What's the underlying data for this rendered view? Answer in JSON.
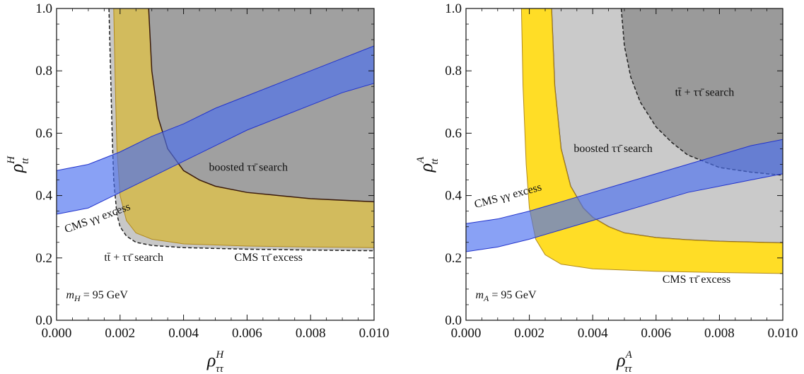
{
  "chart_data": [
    {
      "type": "area",
      "xlabel": "ρ",
      "xlabel_sup": "H",
      "xlabel_sub": "ττ",
      "ylabel": "ρ",
      "ylabel_sup": "H",
      "ylabel_sub": "tt",
      "xlim": [
        0,
        0.01
      ],
      "ylim": [
        0,
        1.0
      ],
      "xticks": [
        "0.000",
        "0.002",
        "0.004",
        "0.006",
        "0.008",
        "0.010"
      ],
      "yticks": [
        "0.0",
        "0.2",
        "0.4",
        "0.6",
        "0.8",
        "1.0"
      ],
      "grid": false,
      "regions": [
        {
          "name": "tt̄ + ττ̄ search",
          "kind": "excluded",
          "color": "#c8c8c8",
          "boundary": {
            "x": [
              0.00165,
              0.0017,
              0.00175,
              0.0018,
              0.0019,
              0.002,
              0.0022,
              0.0025,
              0.003,
              0.004,
              0.006,
              0.008,
              0.01
            ],
            "y": [
              1.0,
              0.8,
              0.6,
              0.45,
              0.34,
              0.3,
              0.27,
              0.25,
              0.24,
              0.233,
              0.228,
              0.225,
              0.223
            ]
          }
        },
        {
          "name": "CMS ττ̄ excess",
          "kind": "band",
          "color": "#d3b94a",
          "lower": {
            "x": [
              0.0018,
              0.00185,
              0.0019,
              0.002,
              0.0022,
              0.0025,
              0.003,
              0.004,
              0.006,
              0.008,
              0.01
            ],
            "y": [
              1.0,
              0.75,
              0.55,
              0.4,
              0.32,
              0.28,
              0.26,
              0.245,
              0.238,
              0.235,
              0.233
            ]
          },
          "upper": {
            "x": [
              0.0029,
              0.003,
              0.0032,
              0.0035,
              0.004,
              0.0045,
              0.005,
              0.006,
              0.007,
              0.008,
              0.01
            ],
            "y": [
              1.0,
              0.8,
              0.65,
              0.55,
              0.48,
              0.45,
              0.43,
              0.41,
              0.4,
              0.39,
              0.38
            ]
          }
        },
        {
          "name": "boosted ττ̄ search",
          "kind": "excluded",
          "color": "#a0a0a0",
          "boundary": {
            "x": [
              0.0029,
              0.003,
              0.0032,
              0.0035,
              0.004,
              0.0045,
              0.005,
              0.006,
              0.007,
              0.008,
              0.01
            ],
            "y": [
              1.0,
              0.8,
              0.65,
              0.55,
              0.48,
              0.45,
              0.43,
              0.41,
              0.4,
              0.39,
              0.38
            ]
          }
        },
        {
          "name": "CMS γγ excess",
          "kind": "band",
          "color": "#4a6ff0",
          "lower": {
            "x": [
              0,
              0.001,
              0.002,
              0.003,
              0.004,
              0.005,
              0.006,
              0.007,
              0.008,
              0.009,
              0.01
            ],
            "y": [
              0.34,
              0.36,
              0.41,
              0.46,
              0.51,
              0.56,
              0.61,
              0.65,
              0.69,
              0.73,
              0.76
            ]
          },
          "upper": {
            "x": [
              0,
              0.001,
              0.002,
              0.003,
              0.004,
              0.005,
              0.006,
              0.007,
              0.008,
              0.009,
              0.01
            ],
            "y": [
              0.48,
              0.5,
              0.54,
              0.59,
              0.63,
              0.68,
              0.72,
              0.76,
              0.8,
              0.84,
              0.88
            ]
          }
        }
      ],
      "annotations": [
        {
          "text": "boosted ττ̄ search",
          "x": 0.0048,
          "y": 0.48,
          "color": "#111111",
          "rotate": 0
        },
        {
          "text": "CMS γγ excess",
          "x": 0.0003,
          "y": 0.28,
          "color": "#1a1adb",
          "rotate": -20
        },
        {
          "text": "tt̄ + ττ̄ search",
          "x": 0.0015,
          "y": 0.19,
          "color": "#111111",
          "rotate": 0
        },
        {
          "text": "CMS ττ̄ excess",
          "x": 0.0056,
          "y": 0.19,
          "color": "#d42020",
          "rotate": 0
        },
        {
          "text": "m_H = 95 GeV",
          "x": 0.0003,
          "y": 0.07,
          "color": "#111111",
          "rotate": 0
        }
      ]
    },
    {
      "type": "area",
      "xlabel": "ρ",
      "xlabel_sup": "A",
      "xlabel_sub": "ττ",
      "ylabel": "ρ",
      "ylabel_sup": "A",
      "ylabel_sub": "tt",
      "xlim": [
        0,
        0.01
      ],
      "ylim": [
        0,
        1.0
      ],
      "xticks": [
        "0.000",
        "0.002",
        "0.004",
        "0.006",
        "0.008",
        "0.010"
      ],
      "yticks": [
        "0.0",
        "0.2",
        "0.4",
        "0.6",
        "0.8",
        "1.0"
      ],
      "grid": false,
      "regions": [
        {
          "name": "boosted ττ̄ search",
          "kind": "excluded",
          "color": "#cacaca",
          "boundary": {
            "x": [
              0.0027,
              0.0028,
              0.003,
              0.0033,
              0.0037,
              0.004,
              0.0045,
              0.005,
              0.006,
              0.007,
              0.008,
              0.01
            ],
            "y": [
              1.0,
              0.75,
              0.55,
              0.43,
              0.36,
              0.33,
              0.3,
              0.28,
              0.265,
              0.258,
              0.253,
              0.248
            ]
          }
        },
        {
          "name": "CMS ττ̄ excess",
          "kind": "band",
          "color": "#ffd700",
          "lower": {
            "x": [
              0.00175,
              0.0018,
              0.0019,
              0.002,
              0.0022,
              0.0025,
              0.003,
              0.004,
              0.006,
              0.008,
              0.01
            ],
            "y": [
              1.0,
              0.75,
              0.5,
              0.36,
              0.26,
              0.21,
              0.18,
              0.165,
              0.157,
              0.153,
              0.15
            ]
          },
          "upper": {
            "x": [
              0.0027,
              0.0028,
              0.003,
              0.0033,
              0.0037,
              0.004,
              0.0045,
              0.005,
              0.006,
              0.007,
              0.008,
              0.01
            ],
            "y": [
              1.0,
              0.75,
              0.55,
              0.43,
              0.36,
              0.33,
              0.3,
              0.28,
              0.265,
              0.258,
              0.253,
              0.248
            ]
          }
        },
        {
          "name": "tt̄ + ττ̄ search",
          "kind": "excluded",
          "color": "#9a9a9a",
          "boundary": {
            "x": [
              0.0049,
              0.005,
              0.0052,
              0.0055,
              0.006,
              0.0065,
              0.007,
              0.0075,
              0.008,
              0.009,
              0.01
            ],
            "y": [
              1.0,
              0.88,
              0.78,
              0.7,
              0.62,
              0.57,
              0.53,
              0.51,
              0.49,
              0.475,
              0.465
            ]
          }
        },
        {
          "name": "CMS γγ excess",
          "kind": "band",
          "color": "#4a6ff0",
          "lower": {
            "x": [
              0,
              0.001,
              0.002,
              0.003,
              0.004,
              0.005,
              0.006,
              0.007,
              0.008,
              0.009,
              0.01
            ],
            "y": [
              0.22,
              0.235,
              0.26,
              0.29,
              0.32,
              0.35,
              0.38,
              0.41,
              0.43,
              0.45,
              0.47
            ]
          },
          "upper": {
            "x": [
              0,
              0.001,
              0.002,
              0.003,
              0.004,
              0.005,
              0.006,
              0.007,
              0.008,
              0.009,
              0.01
            ],
            "y": [
              0.31,
              0.325,
              0.35,
              0.38,
              0.41,
              0.44,
              0.47,
              0.5,
              0.53,
              0.56,
              0.58
            ]
          }
        }
      ],
      "annotations": [
        {
          "text": "tt̄ + ττ̄ search",
          "x": 0.0066,
          "y": 0.72,
          "color": "#111111",
          "rotate": 0
        },
        {
          "text": "boosted ττ̄ search",
          "x": 0.0034,
          "y": 0.54,
          "color": "#111111",
          "rotate": 0
        },
        {
          "text": "CMS γγ excess",
          "x": 0.0003,
          "y": 0.36,
          "color": "#1a1adb",
          "rotate": -15
        },
        {
          "text": "CMS ττ̄ excess",
          "x": 0.0062,
          "y": 0.12,
          "color": "#d42020",
          "rotate": 0
        },
        {
          "text": "m_A = 95 GeV",
          "x": 0.0003,
          "y": 0.07,
          "color": "#111111",
          "rotate": 0
        }
      ]
    }
  ]
}
